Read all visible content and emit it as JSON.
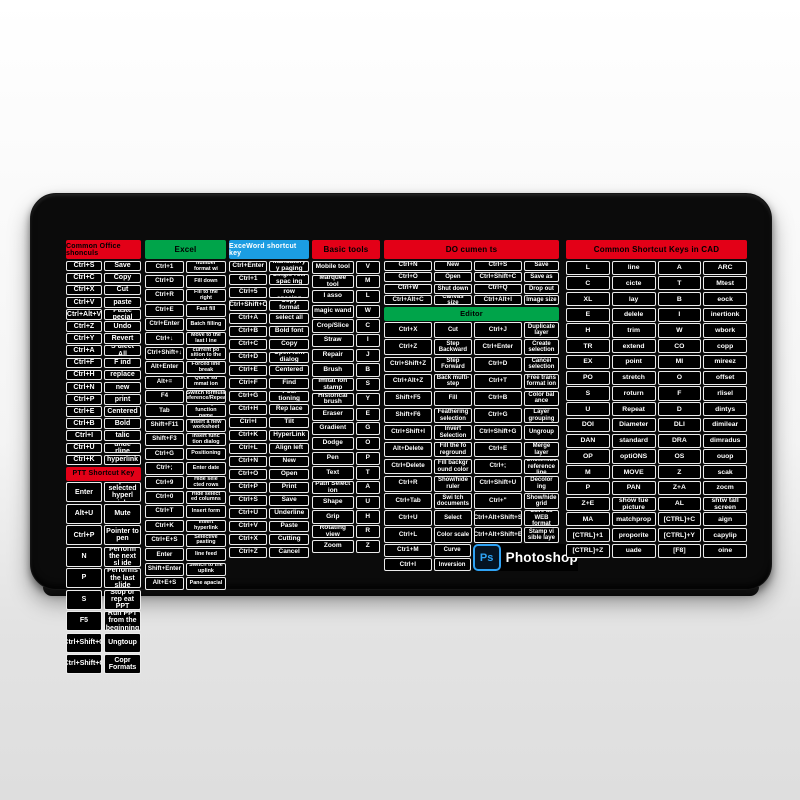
{
  "brand": {
    "logo_text": "Ps",
    "name": "Photoshop",
    "logo_color": "#2fa3f5"
  },
  "colors": {
    "header_red": "#e30017",
    "header_green": "#00a44a",
    "header_blue": "#1b9de2",
    "cell_bg": "#000000",
    "cell_border": "#ececec",
    "pad": "#0b0b0b"
  },
  "sections": {
    "office": {
      "title": "Common Office shonculs",
      "rows": [
        [
          "Ctrl+S",
          "Save"
        ],
        [
          "Ctrl+C",
          "Copy"
        ],
        [
          "Ctrl+X",
          "Cut"
        ],
        [
          "Ctrl+V",
          "paste"
        ],
        [
          "Ctrl+Alt+V",
          "Paste pecial"
        ],
        [
          "Ctrl+Z",
          "Undo"
        ],
        [
          "Ctrl+Y",
          "Revert"
        ],
        [
          "Ctrl+A",
          "S ulect All"
        ],
        [
          "Ctrl+F",
          "F ind"
        ],
        [
          "Ctrl+H",
          "replace"
        ],
        [
          "Ctrl+N",
          "new"
        ],
        [
          "Ctrl+P",
          "print"
        ],
        [
          "Ctrl+E",
          "Centered"
        ],
        [
          "Ctrl+B",
          "Bold"
        ],
        [
          "Ctrl+I",
          "talic"
        ],
        [
          "Ctrl+U",
          "unde rline"
        ],
        [
          "Ctrl+K",
          "hyperlink"
        ]
      ]
    },
    "ppt": {
      "title": "PTT Shortcut Key",
      "rows": [
        [
          "Enter",
          "Open selected hyperl ink"
        ],
        [
          "Alt+U",
          "Mute"
        ],
        [
          "Ctrl+P",
          "Pointer to pen"
        ],
        [
          "N",
          "Perform the next sl ide"
        ],
        [
          "P",
          "Performs the last slide"
        ],
        [
          "S",
          "Stop or rep eat PPT"
        ],
        [
          "F5",
          "Run PPT from the beginning"
        ],
        [
          "Ctrl+Shift+O",
          "Ungtoup"
        ],
        [
          "Ctrl+Shift+C",
          "Copr Formats"
        ]
      ]
    },
    "excel": {
      "title": "Excel",
      "rows": [
        [
          "Ctrl+1",
          "Open the number format wi ndow"
        ],
        [
          "Ctrl+D",
          "Fill down"
        ],
        [
          "Ctrl+R",
          "Fill to the right"
        ],
        [
          "Ctrl+E",
          "Fast fill"
        ],
        [
          "Ctrl+Enter",
          "Batch filling"
        ],
        [
          "Ctrl+↓",
          "Move to the last l ine"
        ],
        [
          "Ctrl+Shift+↓",
          "Check the current po sition to the last l ine"
        ],
        [
          "Alt+Enter",
          "Forced line break"
        ],
        [
          "Alt+=",
          "Quick su mmat ion"
        ],
        [
          "F4",
          "Switch formula reference/Repeat"
        ],
        [
          "Tab",
          "Autocomplete function name"
        ],
        [
          "Shift+F11",
          "Insert a new worksheet"
        ],
        [
          "Shift+F3",
          "Insert func tion dialog"
        ],
        [
          "Ctrl+G",
          "Positioning"
        ],
        [
          "Ctrl+;",
          "Enter date"
        ],
        [
          "Ctrl+9",
          "Hide sele cted rows"
        ],
        [
          "Ctrl+0",
          "Hide select ed columns"
        ],
        [
          "Ctrl+T",
          "Insert form"
        ],
        [
          "Ctrl+K",
          "Insert hyperlink"
        ],
        [
          "Ctrl+E+S",
          "Selective pasting"
        ],
        [
          "Enter",
          "line feed"
        ],
        [
          "Shift+Enter",
          "Switch to the uplink"
        ],
        [
          "Alt+E+S",
          "Pane apacial"
        ]
      ]
    },
    "word": {
      "title": "ExceWord shortcut key",
      "rows": [
        [
          "Ctrl+Enter",
          "Mandatory y paging"
        ],
        [
          "Ctrl+1",
          "Single row spac ing"
        ],
        [
          "Ctrl+5",
          "1.5 times row spacing"
        ],
        [
          "Ctrl+Shift+C",
          "Copy format"
        ],
        [
          "Ctrl+A",
          "select all"
        ],
        [
          "Ctrl+B",
          "Bold font"
        ],
        [
          "Ctrl+C",
          "Copy"
        ],
        [
          "Ctrl+D",
          "Open font dialog"
        ],
        [
          "Ctrl+E",
          "Centered"
        ],
        [
          "Ctrl+F",
          "Find"
        ],
        [
          "Ctrl+G",
          "Posi tioning"
        ],
        [
          "Ctrl+H",
          "Rep lace"
        ],
        [
          "Ctrl+I",
          "Tilt"
        ],
        [
          "Ctrl+K",
          "HyperLink"
        ],
        [
          "Ctrl+L",
          "Align left"
        ],
        [
          "Ctrl+N",
          "New"
        ],
        [
          "Ctrl+O",
          "Open"
        ],
        [
          "Ctrl+P",
          "Print"
        ],
        [
          "Ctrl+S",
          "Save"
        ],
        [
          "Ctrl+U",
          "Underline"
        ],
        [
          "Ctrl+V",
          "Paste"
        ],
        [
          "Ctrl+X",
          "Cutting"
        ],
        [
          "Ctrl+Z",
          "Cancel"
        ]
      ]
    },
    "tools": {
      "title": "Basic tools",
      "rows": [
        [
          "Mobile tool",
          "V"
        ],
        [
          "Marquee tool",
          "M"
        ],
        [
          "I asso",
          "L"
        ],
        [
          "magic wand",
          "W"
        ],
        [
          "Crop/Slice",
          "C"
        ],
        [
          "Straw",
          "I"
        ],
        [
          "Repair",
          "J"
        ],
        [
          "Brush",
          "B"
        ],
        [
          "Imitat ion stamp",
          "S"
        ],
        [
          "Historical brush",
          "Y"
        ],
        [
          "Eraser",
          "E"
        ],
        [
          "Gradient",
          "G"
        ],
        [
          "Dodge",
          "O"
        ],
        [
          "Pen",
          "P"
        ],
        [
          "Text",
          "T"
        ],
        [
          "Path Select ion",
          "A"
        ],
        [
          "Shape",
          "U"
        ],
        [
          "Grip",
          "H"
        ],
        [
          "Rotating view",
          "R"
        ],
        [
          "Zoom",
          "Z"
        ]
      ]
    },
    "documents": {
      "title": "DO cumen ts",
      "file_rows": [
        [
          "Ctrl+N",
          "New",
          "Ctrl+S",
          "Save"
        ],
        [
          "Ctrl+O",
          "Open",
          "Ctrl+Shift+C",
          "Save as"
        ],
        [
          "Ctrl+W",
          "Shut down",
          "Ctrl+Q",
          "Drop out"
        ],
        [
          "Ctrl+Alt+C",
          "Canvas size",
          "Ctrl+Alt+I",
          "Image size"
        ]
      ],
      "editor_title": "Editor",
      "editor_rows": [
        [
          "Ctrl+X",
          "Cut",
          "Ctrl+J",
          "Duplicate layer"
        ],
        [
          "Ctrl+Z",
          "Step Backward",
          "Ctrl+Enter",
          "Create selection"
        ],
        [
          "Ctrl+Shift+Z",
          "Step Forward",
          "Ctrl+D",
          "Cancel selection"
        ],
        [
          "Ctrl+Alt+Z",
          "Back multi-step",
          "Ctrl+T",
          "Free trans format ion"
        ],
        [
          "Shift+F5",
          "Fill",
          "Ctrl+B",
          "Color bal ance"
        ],
        [
          "Shift+F6",
          "Feathering selection",
          "Ctrl+G",
          "Layer grouping"
        ],
        [
          "Ctrl+Shift+I",
          "Invert Selection",
          "Ctrl+Shift+G",
          "Ungroup"
        ],
        [
          "Alt+Delete",
          "Fill the fo reground",
          "Ctrl+E",
          "Merge layer"
        ],
        [
          "Ctrl+Delete",
          "Fill backgr ound color",
          "Ctrl+;",
          "Show/hide reference line"
        ],
        [
          "Ctrl+R",
          "Show/hide ruler",
          "Ctrl+Shift+U",
          "Decolor ing"
        ],
        [
          "Ctrl+Tab",
          "Swi tch documents",
          "Ctrl+\"",
          "Show/hide grid"
        ],
        [
          "Ctrl+U",
          "Select",
          "Ctrl+Alt+Shift+S",
          "Save as WEB format"
        ],
        [
          "Ctrl+L",
          "Color scale",
          "Ctrl+Alt+Shift+E",
          "Stamp vi sible laye"
        ]
      ],
      "tail_rows": [
        [
          "Ctr1+M",
          "Curve"
        ],
        [
          "Ctrl+I",
          "Inversion"
        ]
      ]
    },
    "cad": {
      "title": "Common Shortcut Keys in CAD",
      "rows": [
        [
          "L",
          "line",
          "A",
          "ARC"
        ],
        [
          "C",
          "cicte",
          "T",
          "Mtest"
        ],
        [
          "XL",
          "lay",
          "B",
          "eock"
        ],
        [
          "E",
          "delele",
          "I",
          "inertionk"
        ],
        [
          "H",
          "trim",
          "W",
          "wbork"
        ],
        [
          "TR",
          "extend",
          "CO",
          "copp"
        ],
        [
          "EX",
          "point",
          "MI",
          "mireez"
        ],
        [
          "PO",
          "stretch",
          "O",
          "offset"
        ],
        [
          "S",
          "roturn",
          "F",
          "rlisel"
        ],
        [
          "U",
          "Repeat",
          "D",
          "dintys"
        ],
        [
          "DOI",
          "Diameter",
          "DLI",
          "dimilear"
        ],
        [
          "DAN",
          "standard",
          "DRA",
          "dimradus"
        ],
        [
          "OP",
          "optiONS",
          "OS",
          "ouop"
        ],
        [
          "M",
          "MOVE",
          "Z",
          "scak"
        ],
        [
          "P",
          "PAN",
          "Z+A",
          "zocm"
        ],
        [
          "Z+E",
          "show tue picture",
          "AL",
          "shtw tall screen"
        ],
        [
          "MA",
          "matchprop",
          "[CTRL]+C",
          "aign"
        ],
        [
          "[CTRL]+1",
          "proporite",
          "[CTRL]+Y",
          "capylip"
        ],
        [
          "[CTRL]+Z",
          "uade",
          "[F8]",
          "oine"
        ]
      ]
    }
  }
}
